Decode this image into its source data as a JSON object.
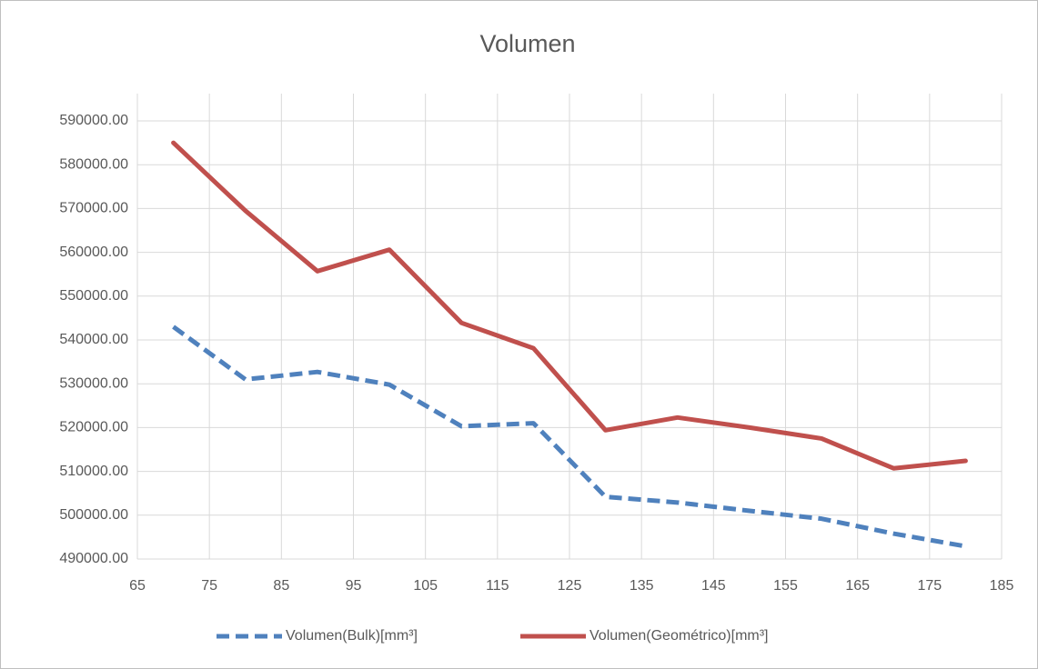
{
  "chart_data": {
    "type": "line",
    "title": "Volumen",
    "x": [
      70,
      80,
      90,
      100,
      110,
      120,
      130,
      140,
      150,
      160,
      170,
      180
    ],
    "series": [
      {
        "name": "Volumen(Bulk)[mm³]",
        "color": "#4f81bd",
        "dash": true,
        "values": [
          543000,
          531000,
          532700,
          529800,
          520300,
          521000,
          504200,
          502900,
          501000,
          499200,
          495800,
          492900
        ]
      },
      {
        "name": "Volumen(Geométrico)[mm³]",
        "color": "#c0504d",
        "dash": false,
        "values": [
          585000,
          569500,
          555700,
          560600,
          543900,
          538100,
          519400,
          522300,
          520000,
          517500,
          510700,
          512400
        ]
      }
    ],
    "xlim": [
      65,
      185
    ],
    "xticks": [
      65,
      75,
      85,
      95,
      105,
      115,
      125,
      135,
      145,
      155,
      165,
      175,
      185
    ],
    "ylim": [
      490000,
      590000
    ],
    "yticks": [
      {
        "value": 490000,
        "label": "490000.00"
      },
      {
        "value": 500000,
        "label": "500000.00"
      },
      {
        "value": 510000,
        "label": "510000.00"
      },
      {
        "value": 520000,
        "label": "520000.00"
      },
      {
        "value": 530000,
        "label": "530000.00"
      },
      {
        "value": 540000,
        "label": "540000.00"
      },
      {
        "value": 550000,
        "label": "550000.00"
      },
      {
        "value": 560000,
        "label": "560000.00"
      },
      {
        "value": 570000,
        "label": "570000.00"
      },
      {
        "value": 580000,
        "label": "580000.00"
      },
      {
        "value": 590000,
        "label": "590000.00"
      }
    ],
    "grid": true,
    "legend": "bottom"
  }
}
